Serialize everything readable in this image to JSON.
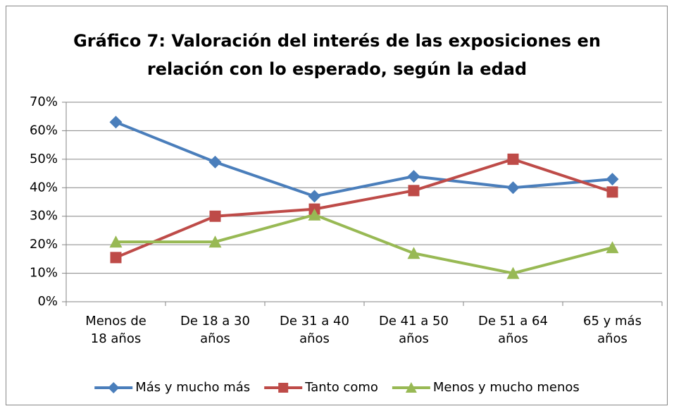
{
  "chart_data": {
    "type": "line",
    "title": "Gráfico 7: Valoración del interés de las exposiciones en\nrelación con lo esperado, según la edad",
    "categories": [
      "Menos de\n18 años",
      "De 18 a 30\naños",
      "De 31 a 40\naños",
      "De 41 a 50\naños",
      "De 51 a 64\naños",
      "65 y más\naños"
    ],
    "series": [
      {
        "name": "Más y mucho más",
        "color": "#4a7ebb",
        "marker": "diamond",
        "values": [
          63,
          49,
          37,
          44,
          40,
          43
        ]
      },
      {
        "name": "Tanto como",
        "color": "#be4b48",
        "marker": "square",
        "values": [
          15.5,
          30,
          32.5,
          39,
          50,
          38.5
        ]
      },
      {
        "name": "Menos y mucho menos",
        "color": "#98b954",
        "marker": "triangle",
        "values": [
          21,
          21,
          30.5,
          17,
          10,
          19
        ]
      }
    ],
    "ylim": [
      0,
      70
    ],
    "yticks": [
      {
        "value": 0,
        "label": "0%"
      },
      {
        "value": 10,
        "label": "10%"
      },
      {
        "value": 20,
        "label": "20%"
      },
      {
        "value": 30,
        "label": "30%"
      },
      {
        "value": 40,
        "label": "40%"
      },
      {
        "value": 50,
        "label": "50%"
      },
      {
        "value": 60,
        "label": "60%"
      },
      {
        "value": 70,
        "label": "70%"
      }
    ],
    "grid": true,
    "legend": "bottom"
  }
}
